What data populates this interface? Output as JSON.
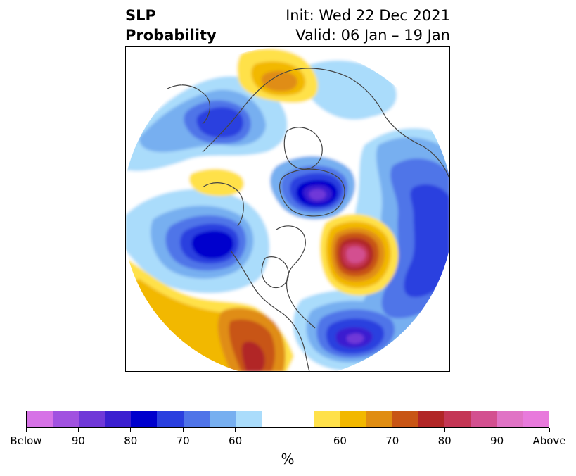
{
  "header": {
    "title_line1": "SLP",
    "title_line2": "Probability",
    "init": "Init: Wed 22 Dec 2021",
    "valid": "Valid: 06 Jan – 19 Jan"
  },
  "colorbar": {
    "colors": [
      "#d672e6",
      "#a152e0",
      "#7038d8",
      "#3b1fd0",
      "#0000cd",
      "#2a3fdf",
      "#4f74e8",
      "#77aff0",
      "#aadcfb",
      "#ffffff",
      "#ffffff",
      "#ffe14a",
      "#f2b800",
      "#e08d12",
      "#c85515",
      "#b12626",
      "#c43655",
      "#d35090",
      "#e073c5",
      "#e87adc"
    ],
    "labels": [
      "Below",
      "90",
      "80",
      "70",
      "60",
      "60",
      "70",
      "80",
      "90",
      "Above"
    ],
    "unit": "%"
  },
  "map": {
    "projection": "north-polar-stereographic",
    "palette": {
      "below_light": "#aadcfb",
      "below_mid": "#77aff0",
      "below_strong": "#4f74e8",
      "below_deep": "#2a3fdf",
      "below_max": "#0000cd",
      "below_violet": "#3b1fd0",
      "below_purple": "#7038d8",
      "above_light": "#ffe14a",
      "above_mid": "#f2b800",
      "above_strong": "#e08d12",
      "above_deep": "#c85515",
      "above_max": "#b12626",
      "above_pink": "#c43655",
      "above_magenta": "#d35090",
      "coast": "#444444"
    }
  }
}
